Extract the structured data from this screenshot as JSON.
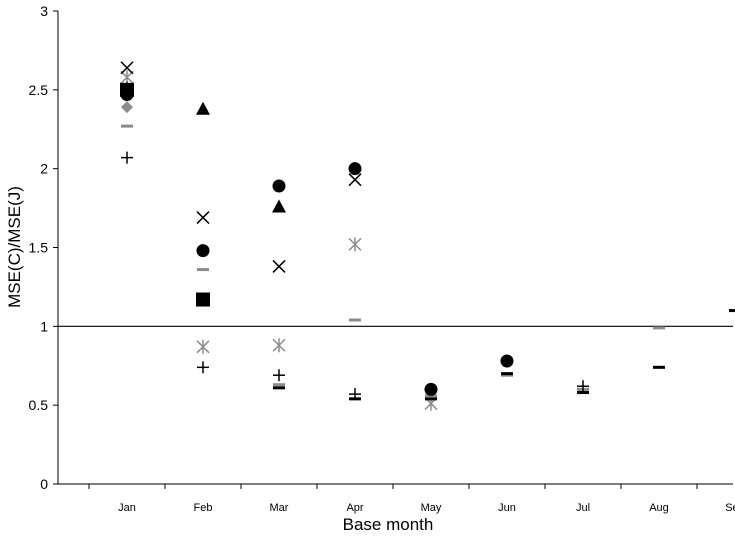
{
  "chart_data": {
    "type": "scatter",
    "title": "",
    "xlabel": "Base month",
    "ylabel": "MSE(C)/MSE(J)",
    "ylim": [
      0,
      3
    ],
    "yticks": [
      "0",
      "0.5",
      "1",
      "1.5",
      "2",
      "2.5",
      "3"
    ],
    "categories": [
      "Jan",
      "Feb",
      "Mar",
      "Apr",
      "May",
      "Jun",
      "Jul",
      "Aug",
      "Sep"
    ],
    "reference_line": 1,
    "grid": false,
    "legend": "none",
    "colors": {
      "black": "#000000",
      "gray": "#8c8c8c",
      "axis": "#000000"
    },
    "series": [
      {
        "marker": "circle",
        "color": "black",
        "points": [
          {
            "x": "Jan",
            "y": 2.47
          },
          {
            "x": "Feb",
            "y": 1.48
          },
          {
            "x": "Mar",
            "y": 1.89
          },
          {
            "x": "Apr",
            "y": 2.0
          },
          {
            "x": "May",
            "y": 0.6
          },
          {
            "x": "Jun",
            "y": 0.78
          }
        ]
      },
      {
        "marker": "triangle",
        "color": "black",
        "points": [
          {
            "x": "Jan",
            "y": 2.51
          },
          {
            "x": "Feb",
            "y": 2.38
          },
          {
            "x": "Mar",
            "y": 1.76
          }
        ]
      },
      {
        "marker": "square",
        "color": "black",
        "points": [
          {
            "x": "Jan",
            "y": 2.5
          },
          {
            "x": "Feb",
            "y": 1.17
          }
        ]
      },
      {
        "marker": "x",
        "color": "black",
        "points": [
          {
            "x": "Jan",
            "y": 2.64
          },
          {
            "x": "Feb",
            "y": 1.69
          },
          {
            "x": "Mar",
            "y": 1.38
          },
          {
            "x": "Apr",
            "y": 1.93
          }
        ]
      },
      {
        "marker": "plus",
        "color": "black",
        "points": [
          {
            "x": "Jan",
            "y": 2.07
          },
          {
            "x": "Feb",
            "y": 0.74
          },
          {
            "x": "Mar",
            "y": 0.69
          },
          {
            "x": "Apr",
            "y": 0.57
          },
          {
            "x": "Jul",
            "y": 0.62
          }
        ]
      },
      {
        "marker": "dash",
        "color": "black",
        "points": [
          {
            "x": "Mar",
            "y": 0.61
          },
          {
            "x": "Apr",
            "y": 0.54
          },
          {
            "x": "May",
            "y": 0.54
          },
          {
            "x": "Jun",
            "y": 0.7
          },
          {
            "x": "Jul",
            "y": 0.58
          },
          {
            "x": "Aug",
            "y": 0.74
          },
          {
            "x": "Sep",
            "y": 1.1
          }
        ]
      },
      {
        "marker": "diamond",
        "color": "gray",
        "points": [
          {
            "x": "Jan",
            "y": 2.39
          }
        ]
      },
      {
        "marker": "asterisk",
        "color": "gray",
        "points": [
          {
            "x": "Jan",
            "y": 2.58
          },
          {
            "x": "Feb",
            "y": 0.87
          },
          {
            "x": "Mar",
            "y": 0.88
          },
          {
            "x": "Apr",
            "y": 1.52
          },
          {
            "x": "May",
            "y": 0.51
          }
        ]
      },
      {
        "marker": "dash",
        "color": "gray",
        "points": [
          {
            "x": "Jan",
            "y": 2.27
          },
          {
            "x": "Feb",
            "y": 1.36
          },
          {
            "x": "Mar",
            "y": 0.63
          },
          {
            "x": "Apr",
            "y": 1.04
          },
          {
            "x": "May",
            "y": 0.56
          },
          {
            "x": "Jun",
            "y": 0.69
          },
          {
            "x": "Jul",
            "y": 0.6
          },
          {
            "x": "Aug",
            "y": 0.99
          }
        ]
      }
    ]
  }
}
